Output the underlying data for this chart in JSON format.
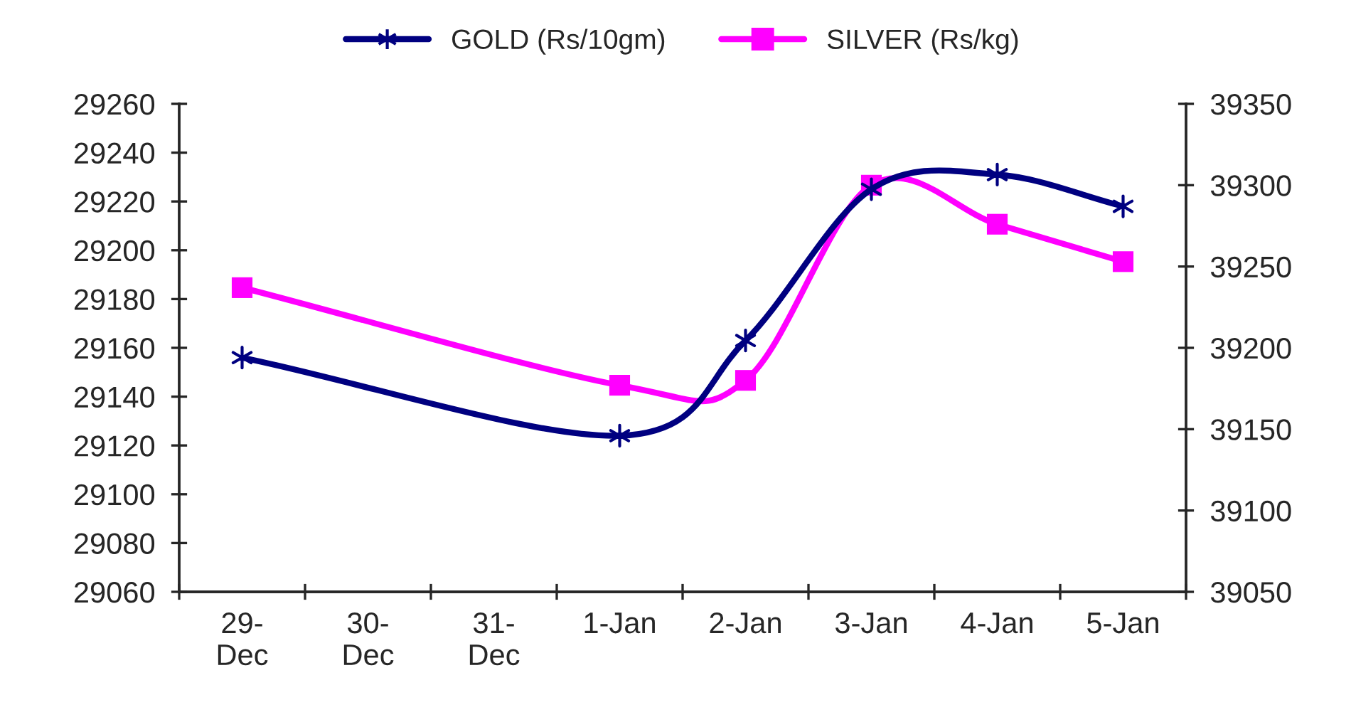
{
  "chart_data": {
    "type": "line",
    "categories": [
      "29-Dec",
      "30-Dec",
      "31-Dec",
      "1-Jan",
      "2-Jan",
      "3-Jan",
      "4-Jan",
      "5-Jan"
    ],
    "series": [
      {
        "name": "GOLD (Rs/10gm)",
        "color": "#000080",
        "marker": "cross",
        "values": [
          29156,
          null,
          null,
          29124,
          29163,
          29225,
          29231,
          29218
        ]
      },
      {
        "name": "SILVER (Rs/kg)",
        "color": "#ff00ff",
        "marker": "square",
        "axis": "y2",
        "values": [
          39237,
          null,
          null,
          39177,
          39180,
          39300,
          39276,
          39253
        ]
      }
    ],
    "ylim": [
      29060,
      29260
    ],
    "yticks": [
      29060,
      29080,
      29100,
      29120,
      29140,
      29160,
      29180,
      29200,
      29220,
      29240,
      29260
    ],
    "y2lim": [
      39050,
      39350
    ],
    "y2ticks": [
      39050,
      39100,
      39150,
      39200,
      39250,
      39300,
      39350
    ],
    "grid": false,
    "legend": "top",
    "line_style": "solid"
  }
}
